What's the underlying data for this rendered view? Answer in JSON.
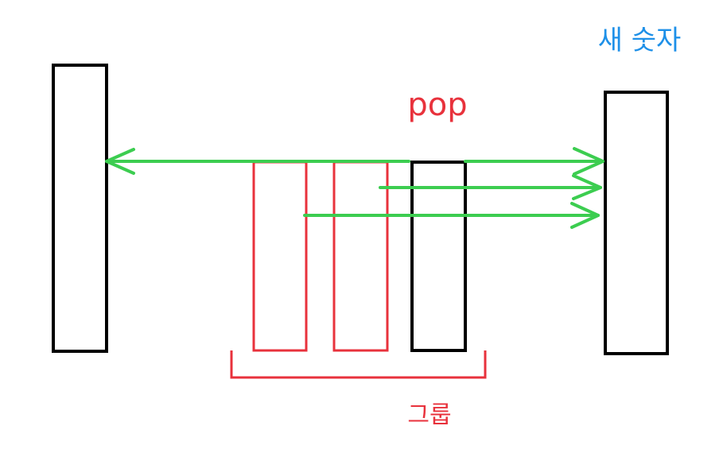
{
  "labels": {
    "pop": "pop",
    "new_number": "새 숫자",
    "group": "그룹"
  },
  "colors": {
    "outline": "#000000",
    "group": "#e8323c",
    "arrow": "#3ccd50",
    "new_number": "#1e90e8",
    "background": "#ffffff"
  }
}
